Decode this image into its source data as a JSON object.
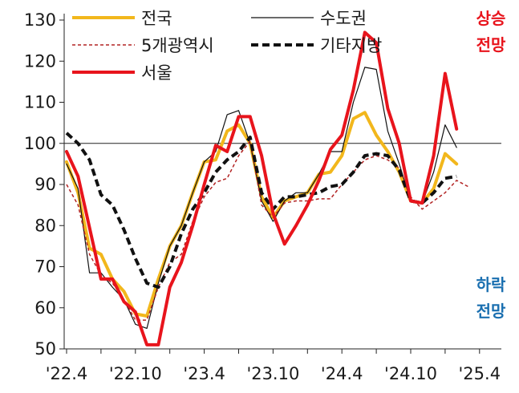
{
  "chart_data": {
    "type": "line",
    "ylim": [
      50,
      130
    ],
    "yticks": [
      50,
      60,
      70,
      80,
      90,
      100,
      110,
      120,
      130
    ],
    "x": [
      "'22.4",
      "'22.5",
      "'22.6",
      "'22.7",
      "'22.8",
      "'22.9",
      "'22.10",
      "'22.11",
      "'22.12",
      "'23.1",
      "'23.2",
      "'23.3",
      "'23.4",
      "'23.5",
      "'23.6",
      "'23.7",
      "'23.8",
      "'23.9",
      "'23.10",
      "'23.11",
      "'23.12",
      "'24.1",
      "'24.2",
      "'24.3",
      "'24.4",
      "'24.5",
      "'24.6",
      "'24.7",
      "'24.8",
      "'24.9",
      "'24.10",
      "'24.11",
      "'24.12",
      "'25.1",
      "'25.2",
      "'25.3",
      "'25.4",
      "'25.5"
    ],
    "xtick_labels": [
      "'22.4",
      "'22.10",
      "'23.4",
      "'23.10",
      "'24.4",
      "'24.10",
      "'25.4"
    ],
    "reference_line": 100,
    "series": [
      {
        "name": "전국",
        "color": "#f2b71c",
        "width": 4,
        "dash": "",
        "values": [
          95.5,
          88,
          74.5,
          73,
          67,
          64,
          58.5,
          58,
          67,
          75,
          80,
          88,
          95.5,
          96,
          103,
          104.5,
          100,
          87,
          82,
          86,
          87,
          88,
          92.5,
          93,
          97,
          106,
          107.5,
          102,
          98,
          93,
          86,
          85.5,
          89,
          97.5,
          95,
          null,
          null,
          null
        ]
      },
      {
        "name": "수도권",
        "color": "#111111",
        "width": 1.2,
        "dash": "",
        "values": [
          95,
          89,
          68.5,
          68.5,
          65,
          62,
          56,
          55,
          66,
          75,
          80,
          88,
          95.5,
          98,
          107,
          108,
          100,
          86,
          81,
          86,
          88,
          88,
          92.5,
          98,
          98,
          110,
          118.5,
          118,
          103,
          95,
          86,
          85.5,
          93,
          104.5,
          99,
          null,
          null,
          null
        ]
      },
      {
        "name": "5개광역시",
        "color": "#b22222",
        "width": 1.5,
        "dash": "4,3",
        "values": [
          90,
          85,
          73,
          68,
          66,
          62,
          57,
          57,
          65,
          71,
          73,
          81,
          87,
          90.5,
          91.5,
          97,
          100.5,
          85,
          82,
          85.5,
          86,
          86,
          86.5,
          86.5,
          90,
          93,
          96,
          97,
          96,
          94,
          87,
          84,
          86,
          88,
          91,
          89.5,
          null,
          null
        ]
      },
      {
        "name": "기타지방",
        "color": "#111111",
        "width": 4,
        "dash": "9,5",
        "values": [
          102.5,
          100,
          96,
          87.5,
          85,
          79,
          72,
          66,
          65,
          70,
          78,
          84,
          88,
          93,
          96,
          98,
          101.5,
          88,
          84,
          87,
          87,
          87.5,
          88,
          89.5,
          90,
          93,
          97,
          97.5,
          97,
          93.5,
          86,
          85.5,
          88,
          91.5,
          92,
          null,
          null,
          null
        ]
      },
      {
        "name": "서울",
        "color": "#e8141c",
        "width": 4,
        "dash": "",
        "values": [
          98,
          92,
          79.5,
          67,
          67,
          61.5,
          59,
          51,
          51,
          65,
          71,
          80,
          90,
          99.5,
          98,
          106.5,
          106.5,
          97,
          83,
          75.5,
          80,
          85,
          91,
          98.5,
          102,
          113,
          127,
          124.5,
          108.5,
          100,
          86,
          85.5,
          97,
          117,
          103.5,
          null,
          null,
          null
        ]
      }
    ],
    "annotations": [
      {
        "text_line1": "상승",
        "text_line2": "전망",
        "color": "#e8141c"
      },
      {
        "text_line1": "하락",
        "text_line2": "전망",
        "color": "#1a6fb0"
      }
    ]
  }
}
